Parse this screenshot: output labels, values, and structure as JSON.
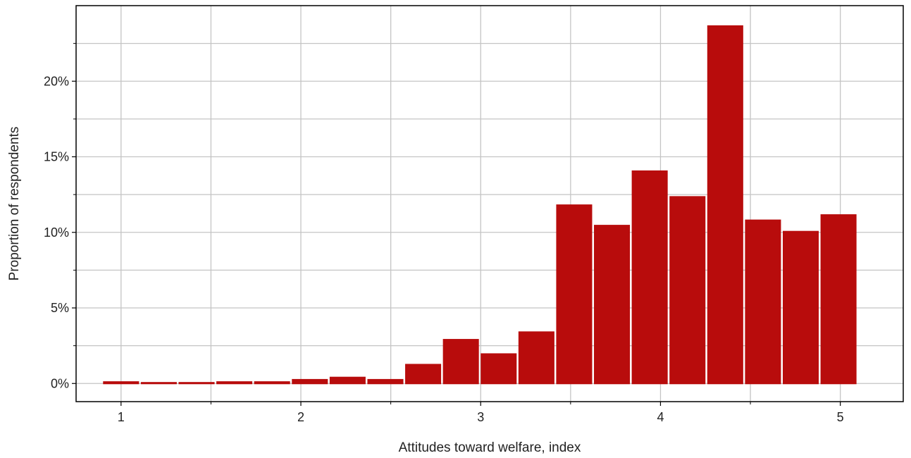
{
  "chart_data": {
    "type": "bar",
    "title": "",
    "xlabel": "Attitudes toward welfare, index",
    "ylabel": "Proportion of respondents",
    "xlim": [
      0.75,
      5.35
    ],
    "ylim": [
      -0.012,
      0.25
    ],
    "x_ticks": [
      1,
      2,
      3,
      4,
      5
    ],
    "x_tick_labels": [
      "1",
      "2",
      "3",
      "4",
      "5"
    ],
    "x_minor_ticks": [
      1.5,
      2.5,
      3.5,
      4.5
    ],
    "y_ticks": [
      0,
      0.05,
      0.1,
      0.15,
      0.2
    ],
    "y_tick_labels": [
      "0%",
      "5%",
      "10%",
      "15%",
      "20%"
    ],
    "y_minor_ticks": [
      0.025,
      0.075,
      0.125,
      0.175,
      0.225
    ],
    "grid": true,
    "legend": "none",
    "bar_width": 0.2,
    "x": [
      1.0,
      1.21,
      1.42,
      1.63,
      1.84,
      2.05,
      2.26,
      2.47,
      2.68,
      2.89,
      3.1,
      3.31,
      3.52,
      3.73,
      3.94,
      4.15,
      4.36,
      4.57,
      4.78,
      4.99
    ],
    "values": [
      0.001,
      0.0005,
      0.0005,
      0.001,
      0.001,
      0.0025,
      0.004,
      0.0025,
      0.0125,
      0.029,
      0.0195,
      0.034,
      0.118,
      0.1045,
      0.1405,
      0.1235,
      0.2365,
      0.108,
      0.1005,
      0.1115
    ],
    "colors": {
      "bar": "#b80c0c",
      "grid": "#c4c4c4",
      "axis": "#000000",
      "text": "#222222"
    }
  }
}
